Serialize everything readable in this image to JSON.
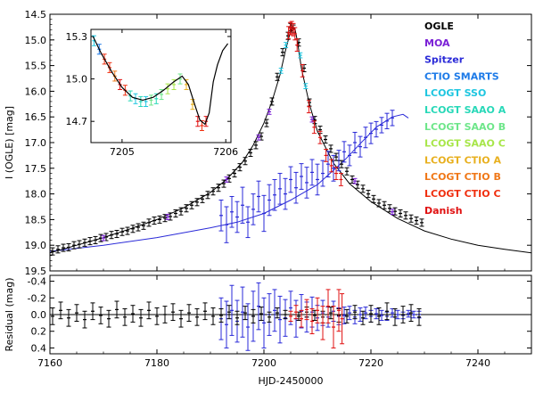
{
  "chart_data": [
    {
      "type": "scatter",
      "panel": "main",
      "title": "",
      "xlabel": "",
      "ylabel": "I (OGLE) [mag]",
      "xlim": [
        7160,
        7250
      ],
      "ylim": [
        19.5,
        14.5
      ],
      "y_inverted": true,
      "x_ticks": [
        7160,
        7180,
        7200,
        7220,
        7240
      ],
      "y_ticks": [
        14.5,
        15.0,
        15.5,
        16.0,
        16.5,
        17.0,
        17.5,
        18.0,
        18.5,
        19.0,
        19.5
      ],
      "y_tick_labels": [
        "14.5",
        "15.0",
        "15.5",
        "16.0",
        "16.5",
        "17.0",
        "17.5",
        "18.0",
        "18.5",
        "19.0",
        "19.5"
      ],
      "grid": false,
      "legend_position": "top-right",
      "legend": [
        {
          "name": "OGLE",
          "color": "#000000"
        },
        {
          "name": "MOA",
          "color": "#7a1fd6"
        },
        {
          "name": "Spitzer",
          "color": "#2a2ad8"
        },
        {
          "name": "CTIO SMARTS",
          "color": "#1e7be8"
        },
        {
          "name": "LCOGT SSO",
          "color": "#1fc6e0"
        },
        {
          "name": "LCOGT SAAO A",
          "color": "#28d8b8"
        },
        {
          "name": "LCOGT SAAO B",
          "color": "#6ee68a"
        },
        {
          "name": "LCOGT SAAO C",
          "color": "#a8e64a"
        },
        {
          "name": "LCOGT CTIO A",
          "color": "#e8b020"
        },
        {
          "name": "LCOGT CTIO B",
          "color": "#f07818"
        },
        {
          "name": "LCOGT CTIO C",
          "color": "#f03010"
        },
        {
          "name": "Danish",
          "color": "#e01010"
        }
      ],
      "ground_model": {
        "color": "#000000",
        "x": [
          7160,
          7165,
          7170,
          7175,
          7180,
          7185,
          7190,
          7193,
          7196,
          7198,
          7200,
          7201.5,
          7203,
          7204,
          7204.8,
          7205.4,
          7205.8,
          7206.3,
          7207,
          7208.5,
          7210,
          7213,
          7216,
          7220,
          7225,
          7230,
          7235,
          7240,
          7245,
          7250
        ],
        "y": [
          19.15,
          19.0,
          18.85,
          18.68,
          18.5,
          18.27,
          17.97,
          17.72,
          17.38,
          17.05,
          16.62,
          16.2,
          15.68,
          15.22,
          14.9,
          14.74,
          14.78,
          15.05,
          15.55,
          16.25,
          16.78,
          17.4,
          17.8,
          18.15,
          18.48,
          18.72,
          18.88,
          19.0,
          19.08,
          19.15
        ]
      },
      "spitzer_model": {
        "color": "#2a2ad8",
        "x": [
          7160,
          7170,
          7180,
          7190,
          7195,
          7200,
          7205,
          7210,
          7215,
          7218,
          7221,
          7224,
          7226,
          7227
        ],
        "y": [
          19.12,
          19.0,
          18.85,
          18.66,
          18.55,
          18.38,
          18.12,
          17.82,
          17.35,
          17.02,
          16.7,
          16.5,
          16.45,
          16.52
        ]
      },
      "ogle_points": {
        "color": "#000000",
        "x": [
          7160.5,
          7161.5,
          7162.5,
          7163.5,
          7164.5,
          7165.5,
          7166.5,
          7167.5,
          7168.5,
          7169.5,
          7170.5,
          7171.5,
          7172.5,
          7173.5,
          7174.5,
          7175.5,
          7176.5,
          7177.5,
          7178.5,
          7179.5,
          7180.5,
          7181.5,
          7182.5,
          7183.5,
          7184.5,
          7185.5,
          7186.5,
          7187.5,
          7188.5,
          7189.5,
          7190.5,
          7191.5,
          7192.5,
          7193.5,
          7194.5,
          7195.5,
          7196.5,
          7197.5,
          7198.5,
          7199.5,
          7200.5,
          7201.5,
          7202.5,
          7203.5,
          7204.5,
          7205.0,
          7205.5,
          7206.5,
          7207.5,
          7208.5,
          7209.5,
          7210.5,
          7211.5,
          7212.5,
          7213.5,
          7214.5,
          7215.5,
          7216.5,
          7217.5,
          7218.5,
          7219.5,
          7220.5,
          7221.5,
          7222.5,
          7223.5,
          7224.5,
          7225.5,
          7226.5,
          7227.5,
          7228.5,
          7229.5
        ],
        "y": [
          19.12,
          19.08,
          19.05,
          19.04,
          19.0,
          18.98,
          18.95,
          18.92,
          18.9,
          18.86,
          18.84,
          18.8,
          18.78,
          18.74,
          18.72,
          18.68,
          18.65,
          18.62,
          18.56,
          18.52,
          18.5,
          18.47,
          18.44,
          18.38,
          18.34,
          18.28,
          18.22,
          18.16,
          18.1,
          18.02,
          17.95,
          17.88,
          17.8,
          17.7,
          17.6,
          17.48,
          17.36,
          17.2,
          17.05,
          16.88,
          16.62,
          16.2,
          15.72,
          15.24,
          14.92,
          14.75,
          14.78,
          15.05,
          15.55,
          16.22,
          16.56,
          16.75,
          16.94,
          17.12,
          17.28,
          17.42,
          17.56,
          17.72,
          17.82,
          17.9,
          18.0,
          18.1,
          18.18,
          18.22,
          18.28,
          18.34,
          18.38,
          18.42,
          18.48,
          18.52,
          18.56
        ]
      },
      "spitzer_points": {
        "color": "#2a2ad8",
        "x": [
          7192,
          7193,
          7194,
          7195,
          7196,
          7197,
          7198,
          7199,
          7200,
          7201,
          7202,
          7203,
          7204,
          7205,
          7206,
          7207,
          7208,
          7209,
          7210,
          7211,
          7212,
          7213,
          7214,
          7215,
          7216,
          7217,
          7218,
          7219,
          7220,
          7221,
          7222,
          7223,
          7224
        ],
        "y": [
          18.42,
          18.6,
          18.35,
          18.45,
          18.22,
          18.55,
          18.3,
          18.05,
          18.38,
          18.12,
          18.02,
          17.9,
          18.0,
          17.72,
          17.88,
          17.66,
          17.78,
          17.58,
          17.72,
          17.6,
          17.42,
          17.5,
          17.35,
          17.18,
          17.25,
          17.0,
          17.08,
          16.9,
          16.82,
          16.74,
          16.66,
          16.58,
          16.52
        ],
        "err": [
          0.3,
          0.35,
          0.3,
          0.3,
          0.35,
          0.3,
          0.3,
          0.3,
          0.35,
          0.3,
          0.3,
          0.3,
          0.3,
          0.25,
          0.3,
          0.25,
          0.3,
          0.25,
          0.3,
          0.25,
          0.25,
          0.25,
          0.2,
          0.2,
          0.2,
          0.2,
          0.2,
          0.2,
          0.2,
          0.15,
          0.15,
          0.15,
          0.15
        ]
      },
      "danish_points": {
        "color": "#e01010",
        "x": [
          7204.6,
          7204.9,
          7205.2,
          7205.5,
          7205.8,
          7206.2,
          7207.2,
          7208.4,
          7209.4,
          7210.5,
          7211.6,
          7212.6,
          7213.5,
          7214.4
        ],
        "y": [
          14.86,
          14.78,
          14.76,
          14.8,
          14.88,
          15.1,
          15.6,
          16.3,
          16.7,
          16.9,
          17.25,
          17.45,
          17.6,
          17.72
        ]
      },
      "moa_points": {
        "color": "#7a1fd6",
        "x": [
          7170,
          7182,
          7193,
          7199,
          7201,
          7209,
          7217,
          7224
        ],
        "y": [
          18.86,
          18.45,
          17.72,
          16.9,
          16.4,
          16.55,
          17.75,
          18.35
        ]
      },
      "cyan_points": {
        "color": "#1fc6e0",
        "x": [
          7203.2,
          7204.1,
          7206.8,
          7207.8
        ],
        "y": [
          15.6,
          15.1,
          15.3,
          15.9
        ]
      },
      "inset": {
        "xlim": [
          7204.7,
          7206.05
        ],
        "ylim": [
          14.55,
          15.35
        ],
        "x_ticks": [
          7205,
          7206
        ],
        "y_ticks": [
          14.7,
          15.0,
          15.3
        ],
        "y_tick_labels": [
          "14.7",
          "15.0",
          "15.3"
        ],
        "model": {
          "color": "#000000",
          "x": [
            7204.72,
            7204.8,
            7204.9,
            7205.0,
            7205.1,
            7205.2,
            7205.3,
            7205.4,
            7205.5,
            7205.58,
            7205.64,
            7205.7,
            7205.75,
            7205.8,
            7205.84,
            7205.88,
            7205.92,
            7205.97,
            7206.02
          ],
          "y": [
            15.3,
            15.18,
            15.05,
            14.94,
            14.87,
            14.85,
            14.87,
            14.92,
            14.98,
            15.02,
            14.96,
            14.82,
            14.71,
            14.68,
            14.76,
            14.98,
            15.1,
            15.2,
            15.25
          ],
          "color_segments": "single"
        },
        "points": [
          {
            "x": 7204.73,
            "y": 15.27,
            "color": "#1fc6e0"
          },
          {
            "x": 7204.78,
            "y": 15.21,
            "color": "#1e7be8"
          },
          {
            "x": 7204.83,
            "y": 15.14,
            "color": "#f03010"
          },
          {
            "x": 7204.88,
            "y": 15.08,
            "color": "#f03010"
          },
          {
            "x": 7204.93,
            "y": 15.02,
            "color": "#f07818"
          },
          {
            "x": 7204.98,
            "y": 14.96,
            "color": "#e01010"
          },
          {
            "x": 7205.03,
            "y": 14.92,
            "color": "#f03010"
          },
          {
            "x": 7205.08,
            "y": 14.88,
            "color": "#28d8b8"
          },
          {
            "x": 7205.13,
            "y": 14.86,
            "color": "#1fc6e0"
          },
          {
            "x": 7205.18,
            "y": 14.84,
            "color": "#28d8b8"
          },
          {
            "x": 7205.23,
            "y": 14.84,
            "color": "#1fc6e0"
          },
          {
            "x": 7205.28,
            "y": 14.85,
            "color": "#6ee68a"
          },
          {
            "x": 7205.33,
            "y": 14.86,
            "color": "#28d8b8"
          },
          {
            "x": 7205.38,
            "y": 14.89,
            "color": "#6ee68a"
          },
          {
            "x": 7205.44,
            "y": 14.93,
            "color": "#a8e64a"
          },
          {
            "x": 7205.5,
            "y": 14.96,
            "color": "#a8e64a"
          },
          {
            "x": 7205.56,
            "y": 15.0,
            "color": "#6ee68a"
          },
          {
            "x": 7205.62,
            "y": 14.96,
            "color": "#e8b020"
          },
          {
            "x": 7205.68,
            "y": 14.82,
            "color": "#e8b020"
          },
          {
            "x": 7205.73,
            "y": 14.7,
            "color": "#e01010"
          },
          {
            "x": 7205.77,
            "y": 14.67,
            "color": "#f03010"
          },
          {
            "x": 7205.81,
            "y": 14.7,
            "color": "#e01010"
          }
        ]
      },
      "text_labels": [
        {
          "text": "OGLE"
        },
        {
          "text": "MOA"
        },
        {
          "text": "Spitzer"
        },
        {
          "text": "CTIO SMARTS"
        },
        {
          "text": "LCOGT SSO"
        },
        {
          "text": "LCOGT SAAO A"
        },
        {
          "text": "LCOGT SAAO B"
        },
        {
          "text": "LCOGT SAAO C"
        },
        {
          "text": "LCOGT CTIO A"
        },
        {
          "text": "LCOGT CTIO B"
        },
        {
          "text": "LCOGT CTIO C"
        },
        {
          "text": "Danish"
        }
      ]
    },
    {
      "type": "scatter",
      "panel": "residual",
      "title": "",
      "xlabel": "HJD-2450000",
      "ylabel": "Residual (mag)",
      "xlim": [
        7160,
        7250
      ],
      "ylim": [
        0.47,
        -0.47
      ],
      "y_inverted": true,
      "x_ticks": [
        7160,
        7180,
        7200,
        7220,
        7240
      ],
      "x_tick_labels": [
        "7160",
        "7180",
        "7200",
        "7220",
        "7240"
      ],
      "y_ticks": [
        -0.4,
        -0.2,
        0.0,
        0.2,
        0.4
      ],
      "y_tick_labels": [
        "-0.4",
        "-0.2",
        "0.0",
        "0.2",
        "0.4"
      ],
      "zero_line": 0.0,
      "ogle_residuals": {
        "color": "#000000",
        "x": [
          7160.5,
          7162,
          7163.5,
          7165,
          7166.5,
          7168,
          7169.5,
          7171,
          7172.5,
          7174,
          7175.5,
          7177,
          7178.5,
          7180,
          7181.5,
          7183,
          7184.5,
          7186,
          7187.5,
          7189,
          7190.5,
          7192,
          7193.5,
          7195,
          7196.5,
          7198,
          7199.5,
          7201,
          7202.5,
          7204,
          7206.5,
          7208,
          7209.5,
          7211,
          7212.5,
          7214,
          7215.5,
          7217,
          7218.5,
          7220,
          7221.5,
          7223,
          7224.5,
          7226,
          7227.5,
          7229
        ],
        "y": [
          0.02,
          -0.05,
          0.04,
          -0.02,
          0.06,
          -0.04,
          0.01,
          0.05,
          -0.06,
          0.03,
          -0.01,
          0.04,
          -0.05,
          0.02,
          0.0,
          -0.03,
          0.05,
          -0.02,
          0.03,
          -0.04,
          0.02,
          0.01,
          -0.03,
          0.04,
          -0.02,
          0.02,
          -0.01,
          0.03,
          -0.02,
          0.0,
          0.02,
          -0.03,
          0.01,
          0.03,
          -0.02,
          0.01,
          0.02,
          -0.03,
          0.04,
          -0.01,
          0.02,
          -0.04,
          0.03,
          0.0,
          -0.02,
          0.03
        ],
        "err": [
          0.1,
          0.1,
          0.1,
          0.1,
          0.1,
          0.1,
          0.1,
          0.1,
          0.1,
          0.1,
          0.1,
          0.1,
          0.1,
          0.1,
          0.1,
          0.1,
          0.1,
          0.1,
          0.1,
          0.1,
          0.1,
          0.08,
          0.08,
          0.08,
          0.08,
          0.08,
          0.08,
          0.06,
          0.06,
          0.05,
          0.05,
          0.06,
          0.06,
          0.07,
          0.07,
          0.08,
          0.08,
          0.08,
          0.08,
          0.1,
          0.1,
          0.1,
          0.1,
          0.1,
          0.1,
          0.1
        ]
      },
      "spitzer_residuals": {
        "color": "#2a2ad8",
        "x": [
          7192,
          7193,
          7194,
          7195,
          7196,
          7197,
          7198,
          7199,
          7200,
          7201,
          7202,
          7203,
          7204,
          7205,
          7206,
          7207,
          7208,
          7209,
          7210,
          7211,
          7212,
          7213,
          7214,
          7215,
          7216,
          7217,
          7218,
          7219,
          7220,
          7221,
          7222,
          7223,
          7224,
          7225,
          7226,
          7227,
          7228,
          7229
        ],
        "y": [
          0.05,
          0.12,
          -0.05,
          0.08,
          -0.03,
          0.15,
          0.02,
          -0.1,
          0.1,
          0.0,
          -0.05,
          0.06,
          0.04,
          -0.08,
          0.05,
          -0.04,
          0.03,
          -0.03,
          0.04,
          -0.02,
          0.03,
          -0.04,
          0.02,
          0.01,
          -0.02,
          0.03,
          0.0,
          -0.02,
          0.02,
          -0.01,
          0.01,
          0.02,
          -0.02,
          0.0,
          0.01,
          -0.01,
          0.0,
          0.0
        ],
        "err": [
          0.25,
          0.28,
          0.3,
          0.25,
          0.3,
          0.28,
          0.3,
          0.28,
          0.3,
          0.25,
          0.25,
          0.28,
          0.22,
          0.2,
          0.22,
          0.2,
          0.18,
          0.18,
          0.15,
          0.15,
          0.12,
          0.12,
          0.1,
          0.1,
          0.08,
          0.08,
          0.08,
          0.07,
          0.07,
          0.06,
          0.06,
          0.05,
          0.05,
          0.05,
          0.04,
          0.04,
          0.04,
          0.04
        ]
      },
      "danish_residuals": {
        "color": "#e01010",
        "x": [
          7205,
          7206,
          7207,
          7208,
          7209,
          7210,
          7211,
          7212,
          7213,
          7214,
          7214.6
        ],
        "y": [
          0.02,
          -0.03,
          0.05,
          -0.06,
          0.08,
          -0.05,
          0.1,
          -0.1,
          0.15,
          -0.05,
          0.05
        ],
        "err": [
          0.06,
          0.08,
          0.1,
          0.12,
          0.15,
          0.15,
          0.2,
          0.2,
          0.25,
          0.25,
          0.3
        ]
      }
    }
  ]
}
